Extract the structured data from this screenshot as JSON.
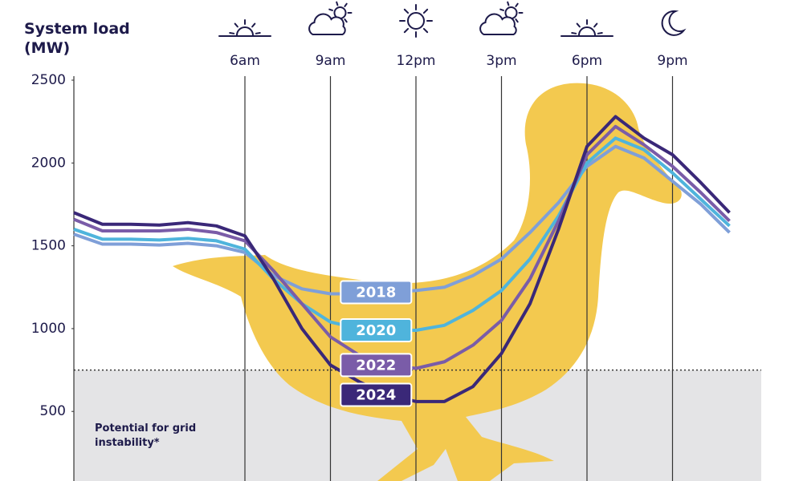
{
  "chart_data": {
    "type": "line",
    "y_label": "System load (MW)",
    "annotation": "Potential for grid instability*",
    "threshold": 750,
    "x": [
      0,
      1,
      2,
      3,
      4,
      5,
      6,
      7,
      8,
      9,
      10,
      11,
      12,
      13,
      14,
      15,
      16,
      17,
      18,
      19,
      20,
      21,
      22,
      23
    ],
    "xlim": [
      0,
      24
    ],
    "xticks": [
      {
        "value": 6,
        "label": "6am"
      },
      {
        "value": 9,
        "label": "9am"
      },
      {
        "value": 12,
        "label": "12pm"
      },
      {
        "value": 15,
        "label": "3pm"
      },
      {
        "value": 18,
        "label": "6pm"
      },
      {
        "value": 21,
        "label": "9pm"
      }
    ],
    "ylim": [
      80,
      2500
    ],
    "yticks": [
      500,
      1000,
      1500,
      2000,
      2500
    ],
    "series": [
      {
        "name": "2018",
        "color": "#7f9fd8",
        "values": [
          1570,
          1510,
          1510,
          1505,
          1515,
          1500,
          1460,
          1320,
          1240,
          1210,
          1210,
          1220,
          1230,
          1250,
          1320,
          1420,
          1580,
          1760,
          1980,
          2100,
          2030,
          1890,
          1750,
          1580
        ]
      },
      {
        "name": "2020",
        "color": "#4fb4dc",
        "values": [
          1600,
          1540,
          1540,
          1535,
          1545,
          1530,
          1480,
          1300,
          1150,
          1040,
          1000,
          990,
          990,
          1020,
          1110,
          1230,
          1420,
          1680,
          2000,
          2150,
          2080,
          1940,
          1780,
          1620
        ]
      },
      {
        "name": "2022",
        "color": "#7a5ca8",
        "values": [
          1660,
          1590,
          1590,
          1590,
          1600,
          1580,
          1530,
          1350,
          1150,
          950,
          840,
          780,
          760,
          800,
          900,
          1050,
          1300,
          1650,
          2050,
          2220,
          2110,
          1980,
          1820,
          1650
        ]
      },
      {
        "name": "2024",
        "color": "#3a2878",
        "values": [
          1700,
          1630,
          1630,
          1625,
          1640,
          1620,
          1560,
          1300,
          1000,
          780,
          680,
          600,
          560,
          560,
          650,
          850,
          1150,
          1600,
          2100,
          2280,
          2150,
          2050,
          1880,
          1700
        ]
      }
    ]
  }
}
